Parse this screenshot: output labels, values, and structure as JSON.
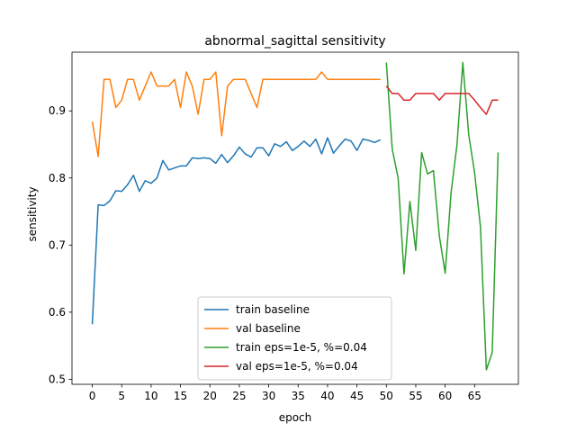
{
  "chart_data": {
    "type": "line",
    "title": "abnormal_sagittal sensitivity",
    "xlabel": "epoch",
    "ylabel": "sensitivity",
    "xlim": [
      -3.45,
      72.45
    ],
    "ylim": [
      0.4925,
      0.9875
    ],
    "xticks": [
      0,
      5,
      10,
      15,
      20,
      25,
      30,
      35,
      40,
      45,
      50,
      55,
      60,
      65
    ],
    "yticks": [
      0.5,
      0.6,
      0.7,
      0.8,
      0.9
    ],
    "grid": false,
    "legend_position": "lower-center",
    "series": [
      {
        "name": "train baseline",
        "color": "#1f77b4",
        "x": [
          0,
          1,
          2,
          3,
          4,
          5,
          6,
          7,
          8,
          9,
          10,
          11,
          12,
          13,
          14,
          15,
          16,
          17,
          18,
          19,
          20,
          21,
          22,
          23,
          24,
          25,
          26,
          27,
          28,
          29,
          30,
          31,
          32,
          33,
          34,
          35,
          36,
          37,
          38,
          39,
          40,
          41,
          42,
          43,
          44,
          45,
          46,
          47,
          48,
          49
        ],
        "values": [
          0.582,
          0.76,
          0.759,
          0.766,
          0.781,
          0.78,
          0.79,
          0.804,
          0.78,
          0.796,
          0.792,
          0.8,
          0.826,
          0.812,
          0.815,
          0.818,
          0.818,
          0.83,
          0.829,
          0.83,
          0.829,
          0.822,
          0.835,
          0.823,
          0.833,
          0.846,
          0.836,
          0.831,
          0.845,
          0.845,
          0.833,
          0.851,
          0.847,
          0.854,
          0.841,
          0.847,
          0.855,
          0.847,
          0.858,
          0.836,
          0.86,
          0.837,
          0.848,
          0.858,
          0.855,
          0.841,
          0.858,
          0.856,
          0.853,
          0.857
        ]
      },
      {
        "name": "val baseline",
        "color": "#ff7f0e",
        "x": [
          0,
          1,
          2,
          3,
          4,
          5,
          6,
          7,
          8,
          9,
          10,
          11,
          12,
          13,
          14,
          15,
          16,
          17,
          18,
          19,
          20,
          21,
          22,
          23,
          24,
          25,
          26,
          27,
          28,
          29,
          30,
          31,
          32,
          33,
          34,
          35,
          36,
          37,
          38,
          39,
          40,
          41,
          42,
          43,
          44,
          45,
          46,
          47,
          48,
          49
        ],
        "values": [
          0.884,
          0.832,
          0.947,
          0.947,
          0.905,
          0.916,
          0.947,
          0.947,
          0.916,
          0.937,
          0.958,
          0.937,
          0.937,
          0.937,
          0.947,
          0.905,
          0.958,
          0.937,
          0.895,
          0.947,
          0.947,
          0.958,
          0.863,
          0.937,
          0.947,
          0.947,
          0.947,
          0.926,
          0.905,
          0.947,
          0.947,
          0.947,
          0.947,
          0.947,
          0.947,
          0.947,
          0.947,
          0.947,
          0.947,
          0.958,
          0.947,
          0.947,
          0.947,
          0.947,
          0.947,
          0.947,
          0.947,
          0.947,
          0.947,
          0.947
        ]
      },
      {
        "name": "train eps=1e-5, %=0.04",
        "color": "#2ca02c",
        "x": [
          50,
          51,
          52,
          53,
          54,
          55,
          56,
          57,
          58,
          59,
          60,
          61,
          62,
          63,
          64,
          65,
          66,
          67,
          68,
          69
        ],
        "values": [
          0.972,
          0.843,
          0.8,
          0.657,
          0.765,
          0.692,
          0.838,
          0.806,
          0.811,
          0.714,
          0.658,
          0.778,
          0.849,
          0.972,
          0.865,
          0.808,
          0.727,
          0.514,
          0.54,
          0.838
        ]
      },
      {
        "name": "val eps=1e-5, %=0.04",
        "color": "#d62728",
        "x": [
          50,
          51,
          52,
          53,
          54,
          55,
          56,
          57,
          58,
          59,
          60,
          61,
          62,
          63,
          64,
          65,
          66,
          67,
          68,
          69
        ],
        "values": [
          0.937,
          0.926,
          0.926,
          0.916,
          0.916,
          0.926,
          0.926,
          0.926,
          0.926,
          0.916,
          0.926,
          0.926,
          0.926,
          0.926,
          0.926,
          0.916,
          0.905,
          0.895,
          0.916,
          0.916
        ]
      }
    ]
  }
}
